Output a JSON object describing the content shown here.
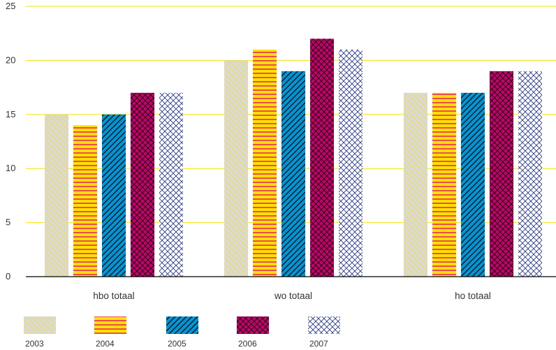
{
  "chart_data": {
    "type": "bar",
    "title": "",
    "xlabel": "",
    "ylabel": "",
    "ylim": [
      0,
      25
    ],
    "yticks": [
      0,
      5,
      10,
      15,
      20,
      25
    ],
    "grid": true,
    "legend_position": "bottom-left",
    "categories": [
      "hbo totaal",
      "wo totaal",
      "ho totaal"
    ],
    "series": [
      {
        "name": "2003",
        "values": [
          15,
          20,
          17
        ],
        "color": "#d9d9d9",
        "accent": "#f2df4a",
        "pattern": "diagonal-back"
      },
      {
        "name": "2004",
        "values": [
          14,
          21,
          17
        ],
        "color": "#ffe000",
        "accent": "#e2007a",
        "pattern": "horizontal"
      },
      {
        "name": "2005",
        "values": [
          15,
          19,
          17
        ],
        "color": "#0096d6",
        "accent": "#000000",
        "pattern": "diagonal-forward"
      },
      {
        "name": "2006",
        "values": [
          17,
          22,
          19
        ],
        "color": "#c8006e",
        "accent": "#000000",
        "pattern": "crosshatch"
      },
      {
        "name": "2007",
        "values": [
          17,
          21,
          19
        ],
        "color": "#ffffff",
        "accent": "#2b3a8c",
        "pattern": "crosshatch"
      }
    ],
    "gridline_color": "#f2e600",
    "axis_color": "#000000"
  }
}
